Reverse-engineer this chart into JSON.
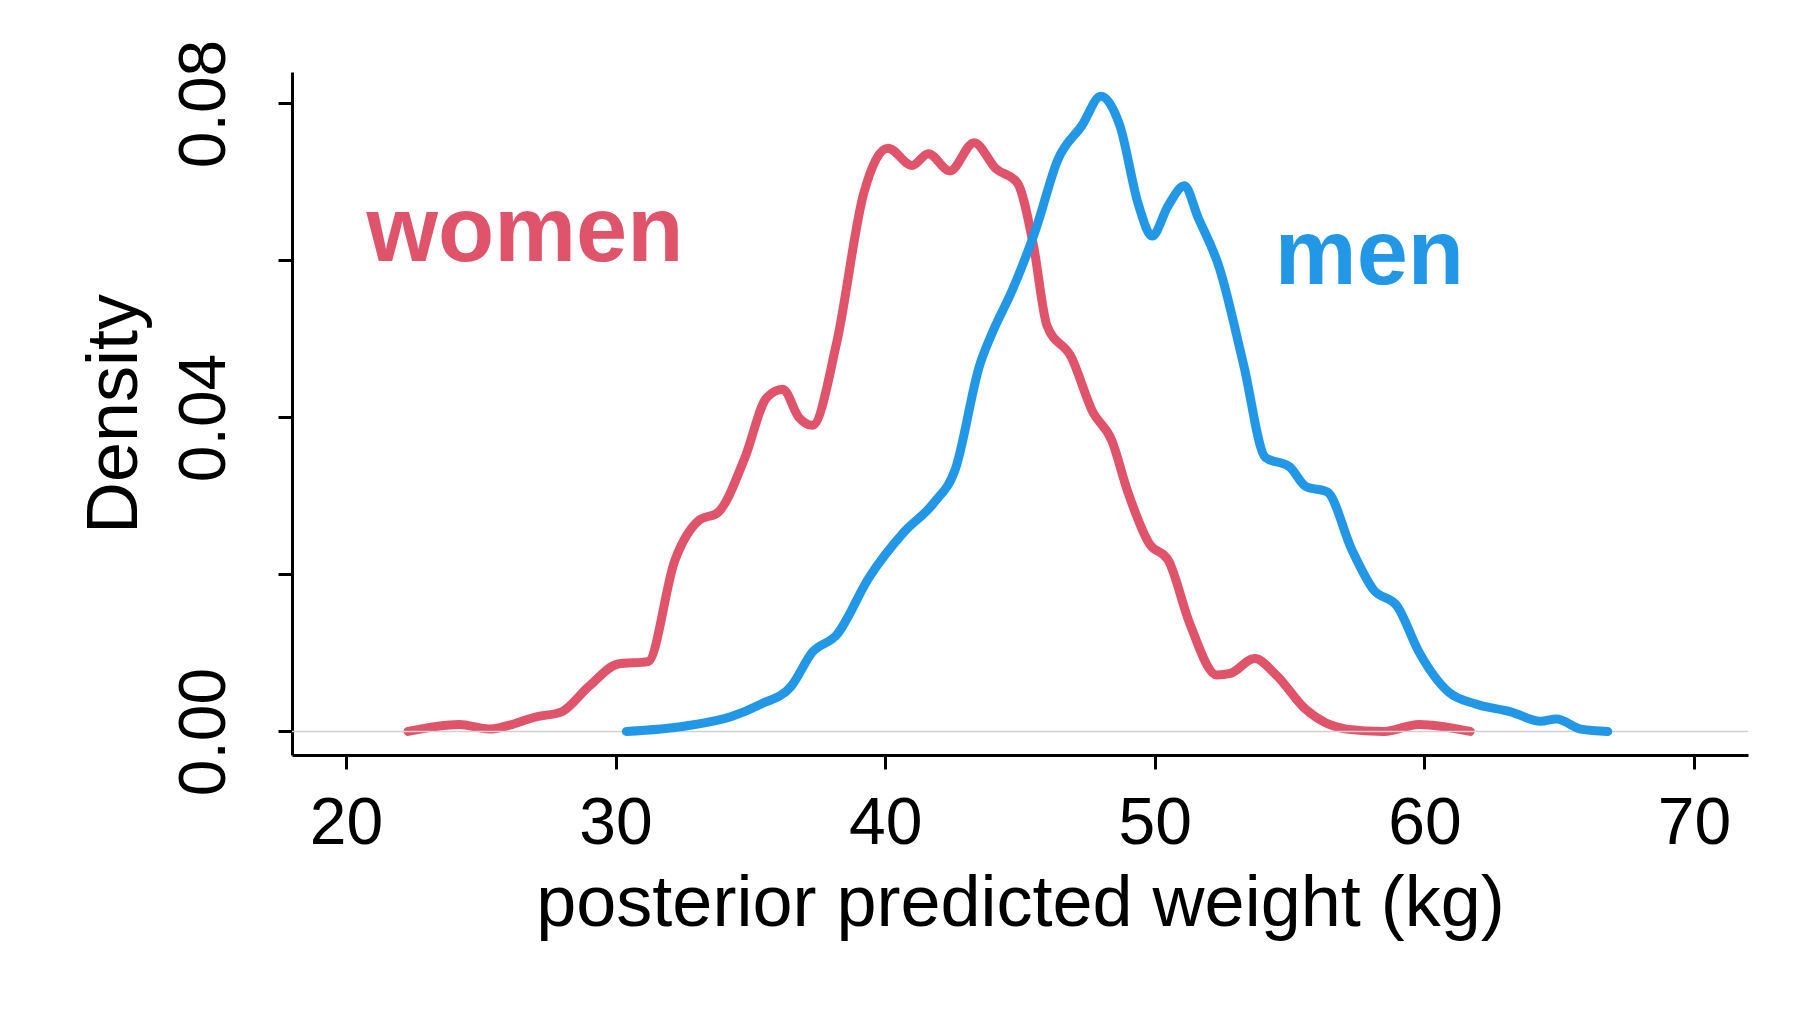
{
  "chart_data": {
    "type": "line",
    "xlabel": "posterior predicted weight (kg)",
    "ylabel": "Density",
    "xlim": [
      18,
      72
    ],
    "ylim": [
      -0.003,
      0.084
    ],
    "xticks": [
      20,
      30,
      40,
      50,
      60,
      70
    ],
    "yticks": [
      {
        "value": 0,
        "label": "0.00"
      },
      {
        "value": 0.02,
        "label": null
      },
      {
        "value": 0.04,
        "label": "0.04"
      },
      {
        "value": 0.06,
        "label": null
      },
      {
        "value": 0.08,
        "label": "0.08"
      }
    ],
    "grid": false,
    "marker": "none",
    "line_style": "solid",
    "ref_lines": [
      {
        "axis": "y",
        "value": 0,
        "color": "#d0d0d0"
      }
    ],
    "series": [
      {
        "name": "women",
        "color": "#df536b",
        "x": [
          22.3,
          24.2,
          25.3,
          27.1,
          28.0,
          29.0,
          30.1,
          31.2,
          32.2,
          33.1,
          33.8,
          34.8,
          35.6,
          36.2,
          36.8,
          37.3,
          38.2,
          39.2,
          40.1,
          41.0,
          41.6,
          42.4,
          43.3,
          44.1,
          44.9,
          45.5,
          46.0,
          46.9,
          47.7,
          48.4,
          49.0,
          49.8,
          50.5,
          51.3,
          52.3,
          52.8,
          53.7,
          54.5,
          55.6,
          57.1,
          58.5,
          59.8,
          61.7
        ],
        "values": [
          0,
          0.0009,
          0.0003,
          0.0019,
          0.0025,
          0.0057,
          0.0086,
          0.0089,
          0.0218,
          0.0269,
          0.0279,
          0.0349,
          0.0425,
          0.0436,
          0.04,
          0.039,
          0.0495,
          0.0685,
          0.0743,
          0.0721,
          0.0736,
          0.0714,
          0.075,
          0.0717,
          0.0699,
          0.0619,
          0.0517,
          0.0477,
          0.0407,
          0.0371,
          0.0305,
          0.0239,
          0.0218,
          0.0137,
          0.0072,
          0.0074,
          0.0093,
          0.0072,
          0.0028,
          0.0003,
          0,
          0.0009,
          0
        ]
      },
      {
        "name": "men",
        "color": "#2297e6",
        "x": [
          30.4,
          32.6,
          34.3,
          35.4,
          36.5,
          37.3,
          38.2,
          39.4,
          40.7,
          41.8,
          42.6,
          43.5,
          44.0,
          44.7,
          45.6,
          46.4,
          47.3,
          48.0,
          48.7,
          49.4,
          49.9,
          50.5,
          51.1,
          51.6,
          52.4,
          53.3,
          54.1,
          55.0,
          55.6,
          56.4,
          57.3,
          58.1,
          59.0,
          59.8,
          60.9,
          61.9,
          63.2,
          64.3,
          64.9,
          65.8,
          66.8
        ],
        "values": [
          0,
          0.0007,
          0.0019,
          0.0035,
          0.0057,
          0.0101,
          0.0123,
          0.0196,
          0.0254,
          0.0291,
          0.0334,
          0.0466,
          0.051,
          0.0561,
          0.0641,
          0.0728,
          0.0772,
          0.0809,
          0.0772,
          0.067,
          0.0631,
          0.067,
          0.0695,
          0.0655,
          0.059,
          0.0466,
          0.0349,
          0.0337,
          0.0312,
          0.0305,
          0.0232,
          0.0181,
          0.0159,
          0.0101,
          0.005,
          0.0035,
          0.0025,
          0.0013,
          0.0016,
          0.0003,
          0
        ]
      }
    ]
  }
}
